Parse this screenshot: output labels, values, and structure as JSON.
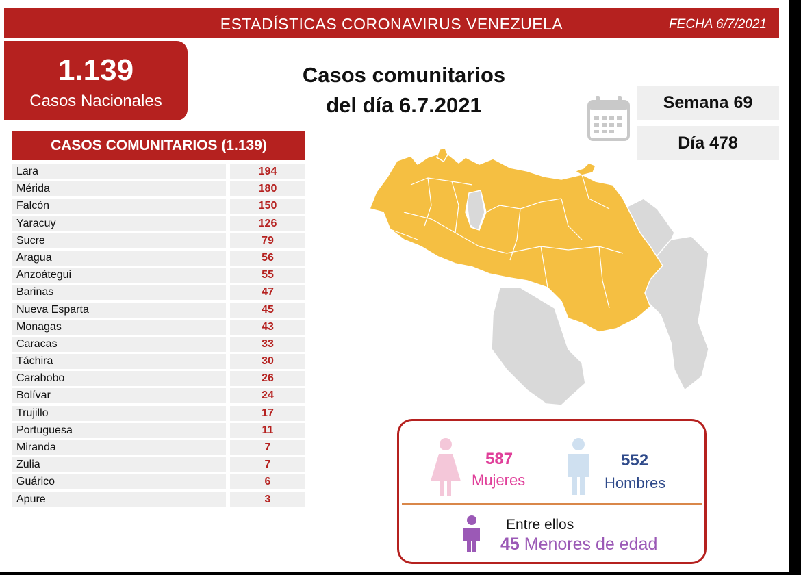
{
  "header": {
    "title": "ESTADÍSTICAS CORONAVIRUS VENEZUELA",
    "date": "FECHA 6/7/2021"
  },
  "national": {
    "count": "1.139",
    "label": "Casos Nacionales"
  },
  "headline": {
    "line1": "Casos comunitarios",
    "line2": "del día 6.7.2021"
  },
  "calendar": {
    "icon": "calendar-icon",
    "week": "Semana 69",
    "day": "Día 478"
  },
  "table": {
    "title": "CASOS COMUNITARIOS (1.139)",
    "rows": [
      {
        "state": "Lara",
        "cases": "194"
      },
      {
        "state": "Mérida",
        "cases": "180"
      },
      {
        "state": "Falcón",
        "cases": "150"
      },
      {
        "state": "Yaracuy",
        "cases": "126"
      },
      {
        "state": "Sucre",
        "cases": "79"
      },
      {
        "state": "Aragua",
        "cases": "56"
      },
      {
        "state": "Anzoátegui",
        "cases": "55"
      },
      {
        "state": "Barinas",
        "cases": "47"
      },
      {
        "state": "Nueva Esparta",
        "cases": "45"
      },
      {
        "state": "Monagas",
        "cases": "43"
      },
      {
        "state": "Caracas",
        "cases": "33"
      },
      {
        "state": "Táchira",
        "cases": "30"
      },
      {
        "state": "Carabobo",
        "cases": "26"
      },
      {
        "state": "Bolívar",
        "cases": "24"
      },
      {
        "state": "Trujillo",
        "cases": "17"
      },
      {
        "state": "Portuguesa",
        "cases": "11"
      },
      {
        "state": "Miranda",
        "cases": "7"
      },
      {
        "state": "Zulia",
        "cases": "7"
      },
      {
        "state": "Guárico",
        "cases": "6"
      },
      {
        "state": "Apure",
        "cases": "3"
      }
    ]
  },
  "gender": {
    "women_count": "587",
    "women_label": "Mujeres",
    "men_count": "552",
    "men_label": "Hombres",
    "minors_intro": "Entre ellos",
    "minors_count": "45",
    "minors_label": "Menores de edad"
  },
  "colors": {
    "brand_red": "#b5211f",
    "map_affected": "#f5bf42",
    "map_unaffected": "#d9d9d9",
    "women": "#e0409a",
    "men": "#2f4a8a",
    "minors": "#9b59b6"
  }
}
